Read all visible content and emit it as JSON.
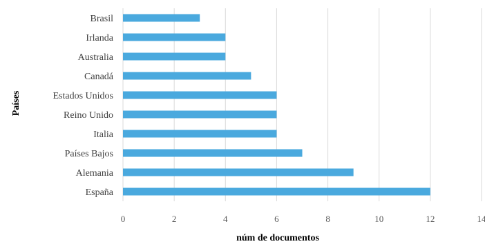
{
  "chart_data": {
    "type": "bar",
    "orientation": "horizontal",
    "categories": [
      "Brasil",
      "Irlanda",
      "Australia",
      "Canadá",
      "Estados Unidos",
      "Reino Unido",
      "Italia",
      "Países Bajos",
      "Alemania",
      "España"
    ],
    "values": [
      3,
      4,
      4,
      5,
      6,
      6,
      6,
      7,
      9,
      12
    ],
    "xticks": [
      "0",
      "2",
      "4",
      "6",
      "8",
      "10",
      "12",
      "14"
    ],
    "xlabel": "núm de documentos",
    "ylabel": "Países",
    "xlim": [
      0,
      14
    ],
    "grid": "vertical",
    "bar_color": "#4aa9de",
    "grid_color": "#d9d9d9"
  }
}
